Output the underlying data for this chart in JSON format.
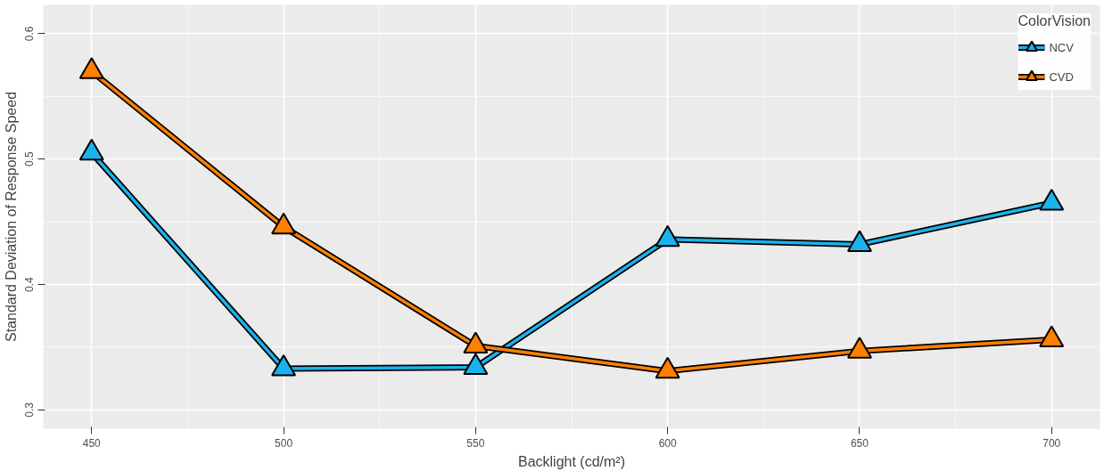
{
  "chart_data": {
    "type": "line",
    "xlabel": "Backlight (cd/m²)",
    "ylabel": "Standard Deviation of Response Speed",
    "legend_title": "ColorVision",
    "x": [
      450,
      500,
      550,
      600,
      650,
      700
    ],
    "series": [
      {
        "name": "NCV",
        "color": "#1ab2ec",
        "marker": "triangle",
        "values": [
          0.505,
          0.333,
          0.334,
          0.436,
          0.432,
          0.465
        ]
      },
      {
        "name": "CVD",
        "color": "#ff7f00",
        "marker": "triangle",
        "values": [
          0.57,
          0.446,
          0.351,
          0.331,
          0.347,
          0.356
        ]
      }
    ],
    "xlim": [
      437.4,
      712.6
    ],
    "ylim": [
      0.285,
      0.623
    ],
    "xticks": [
      450,
      500,
      550,
      600,
      650,
      700
    ],
    "yticks": [
      0.3,
      0.4,
      0.5,
      0.6
    ],
    "grid": true,
    "legend": "top right",
    "line_style": "solid"
  }
}
